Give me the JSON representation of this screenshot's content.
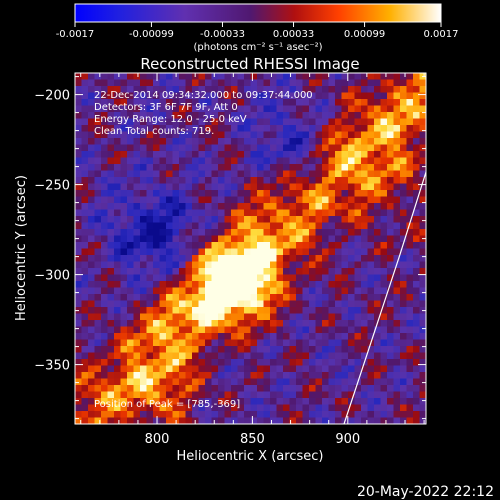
{
  "chart_data": {
    "type": "heatmap",
    "title": "Reconstructed RHESSI Image",
    "xlabel": "Heliocentric X (arcsec)",
    "ylabel": "Heliocentric Y (arcsec)",
    "xlim": [
      757,
      941
    ],
    "ylim": [
      -383,
      -188
    ],
    "x_ticks": [
      "800",
      "850",
      "900"
    ],
    "x_tick_values": [
      800,
      850,
      900
    ],
    "y_ticks": [
      "-200",
      "-250",
      "-300",
      "-350"
    ],
    "y_tick_values": [
      -200,
      -250,
      -300,
      -350
    ],
    "colorbar": {
      "min": -0.0017,
      "max": 0.0017,
      "tick_labels": [
        "-0.0017",
        "-0.00099",
        "-0.00033",
        "0.00033",
        "0.00099",
        "0.0017"
      ],
      "tick_values": [
        -0.0017,
        -0.00099,
        -0.00033,
        0.00033,
        0.00099,
        0.0017
      ],
      "unit_label": "(photons cm⁻² s⁻¹ asec⁻²)"
    },
    "annotations": {
      "time": "22-Dec-2014 09:34:32.000 to 09:37:44.000",
      "detectors": "Detectors: 3F 6F 7F 9F, Att 0",
      "energy": "Energy Range: 12.0 - 25.0 keV",
      "method": "Clean    Total counts: 719.",
      "peak": "Position of Peak = [785,-369]"
    },
    "peak": [
      785,
      -369
    ],
    "limb_curve": [
      [
        941,
        -243
      ],
      [
        927,
        -290
      ],
      [
        913,
        -335
      ],
      [
        898,
        -383
      ]
    ],
    "date_stamp": "20-May-2022 22:12"
  }
}
